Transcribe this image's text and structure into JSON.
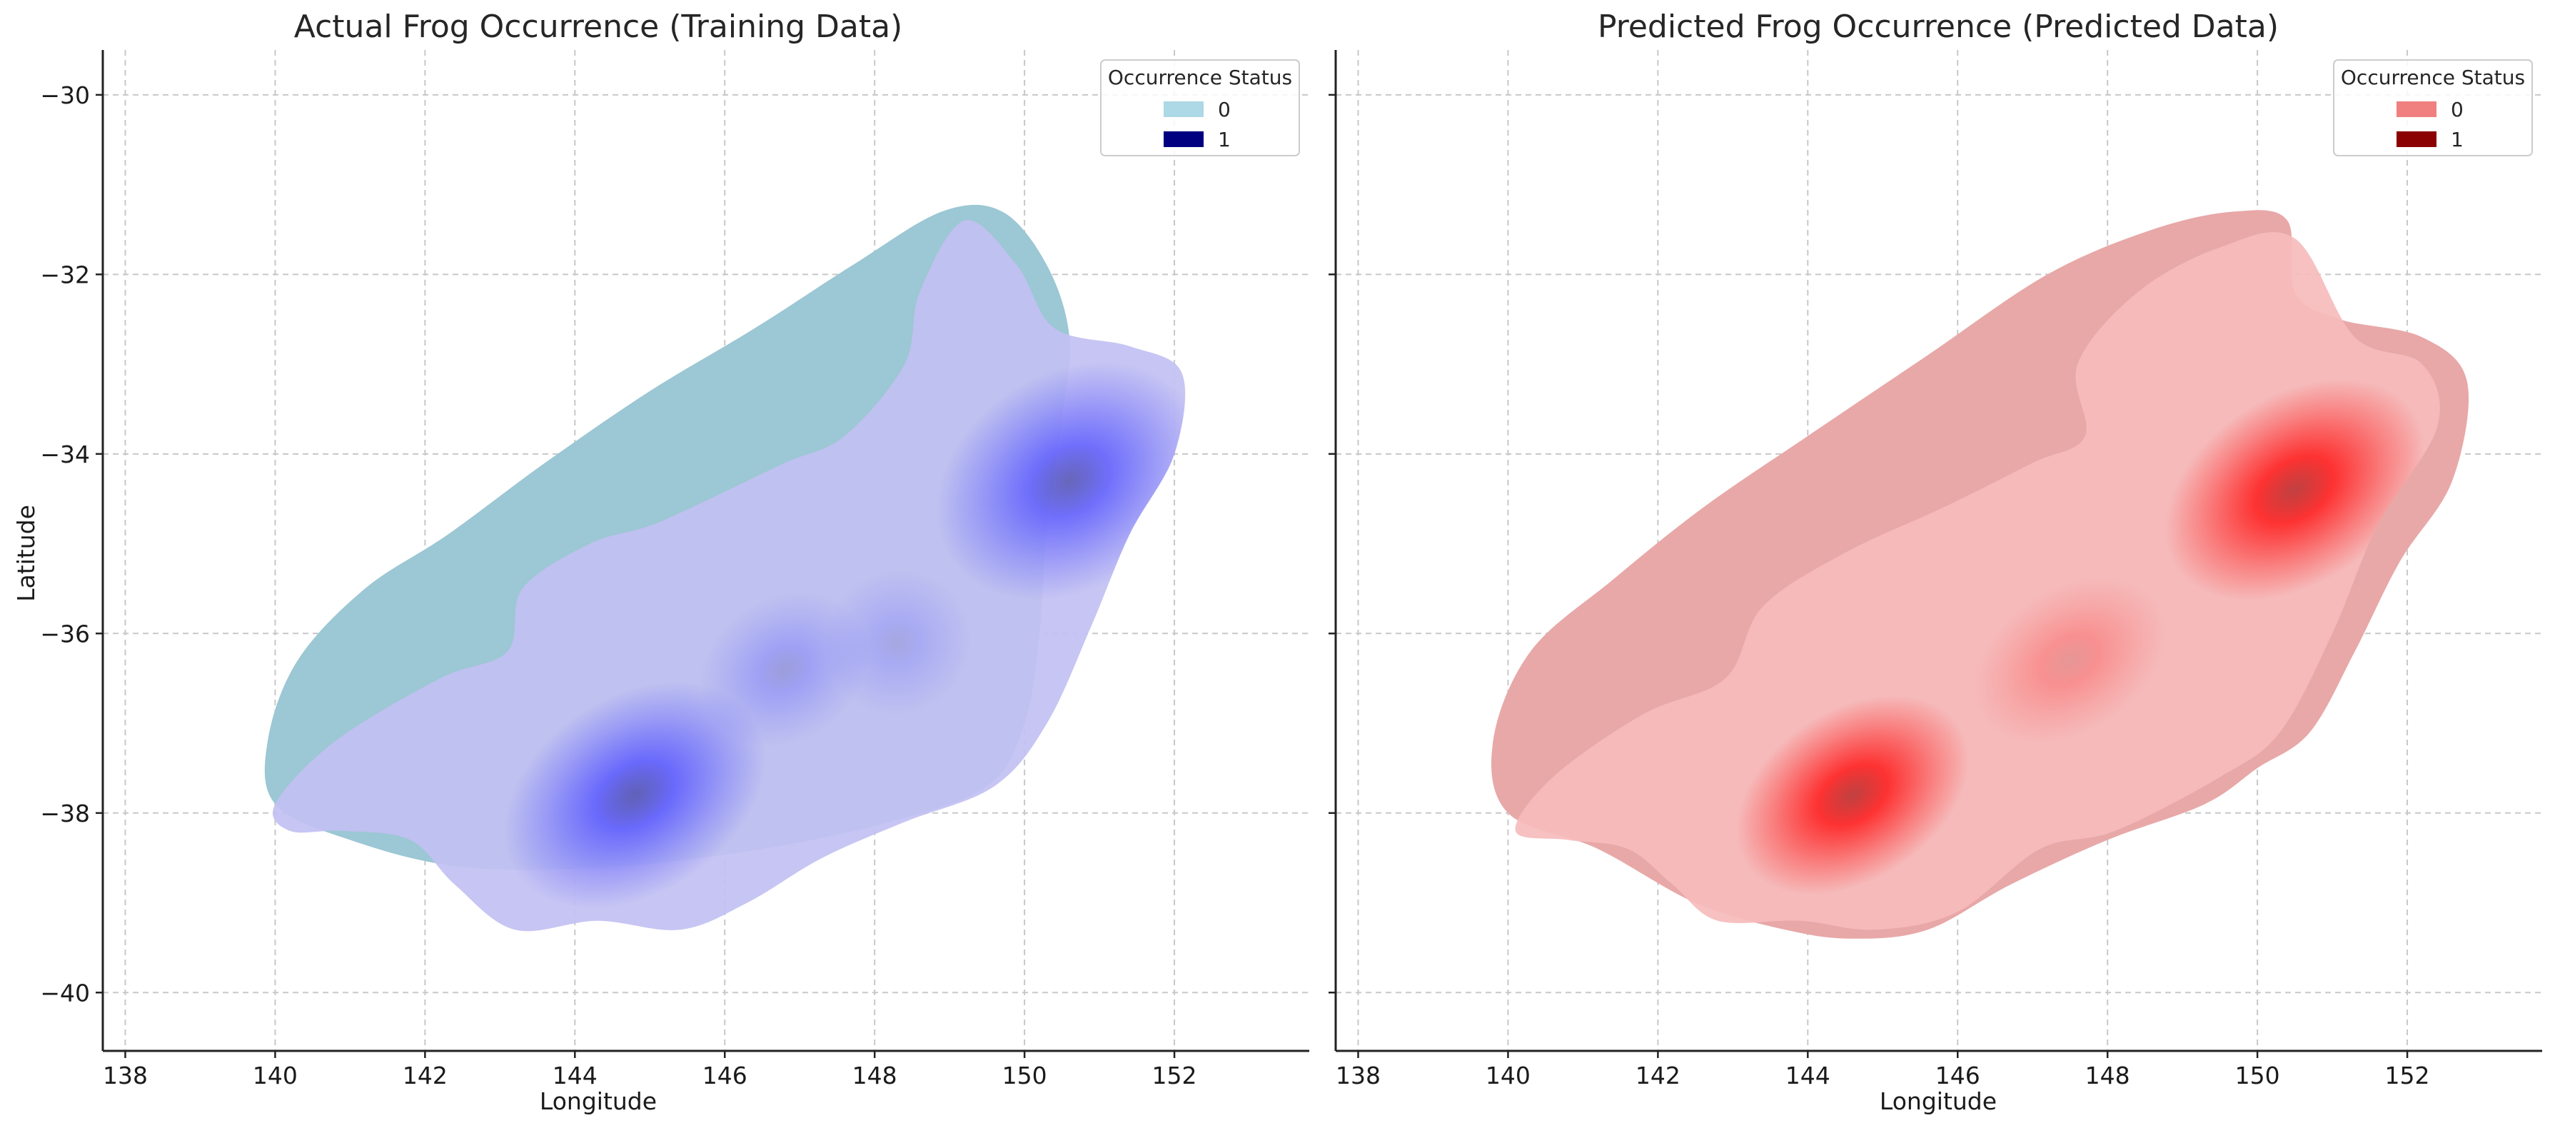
{
  "chart_data": [
    {
      "type": "kde-density",
      "title": "Actual Frog Occurrence (Training Data)",
      "xlabel": "Longitude",
      "ylabel": "Latitude",
      "xlim": [
        137.7,
        153.8
      ],
      "ylim": [
        -40.65,
        -29.5
      ],
      "xticks": [
        138,
        140,
        142,
        144,
        146,
        148,
        150,
        152
      ],
      "yticks": [
        -30,
        -32,
        -34,
        -36,
        -38,
        -40
      ],
      "xtick_labels": [
        "138",
        "140",
        "142",
        "144",
        "146",
        "148",
        "150",
        "152"
      ],
      "ytick_labels": [
        "−30",
        "−32",
        "−34",
        "−36",
        "−38",
        "−40"
      ],
      "grid": true,
      "legend": {
        "title": "Occurrence Status",
        "placement": "top-right",
        "entries": [
          {
            "label": "0",
            "color": "#add8e6"
          },
          {
            "label": "1",
            "color": "#000080"
          }
        ]
      },
      "density_colors": {
        "0": "#9cc7d4",
        "1": "#5555ff",
        "1_low": "#c2c0f2"
      },
      "series": [
        {
          "legend_label": "0",
          "outline": [
            [
              140.0,
              -37.9
            ],
            [
              139.9,
              -37.2
            ],
            [
              140.3,
              -36.3
            ],
            [
              141.2,
              -35.5
            ],
            [
              142.3,
              -34.9
            ],
            [
              143.6,
              -34.1
            ],
            [
              145.0,
              -33.3
            ],
            [
              146.4,
              -32.6
            ],
            [
              147.7,
              -31.9
            ],
            [
              148.9,
              -31.3
            ],
            [
              149.7,
              -31.3
            ],
            [
              150.3,
              -31.9
            ],
            [
              150.6,
              -32.7
            ],
            [
              150.5,
              -33.6
            ],
            [
              150.3,
              -34.8
            ],
            [
              150.2,
              -36.0
            ],
            [
              150.0,
              -37.0
            ],
            [
              149.5,
              -37.7
            ],
            [
              148.2,
              -38.1
            ],
            [
              146.5,
              -38.4
            ],
            [
              144.5,
              -38.6
            ],
            [
              142.5,
              -38.6
            ],
            [
              141.0,
              -38.3
            ]
          ]
        },
        {
          "legend_label": "1",
          "outline": [
            [
              140.2,
              -38.2
            ],
            [
              140.0,
              -37.9
            ],
            [
              140.8,
              -37.2
            ],
            [
              142.2,
              -36.5
            ],
            [
              143.1,
              -36.2
            ],
            [
              143.3,
              -35.5
            ],
            [
              144.2,
              -35.0
            ],
            [
              145.0,
              -34.8
            ],
            [
              145.8,
              -34.5
            ],
            [
              146.8,
              -34.1
            ],
            [
              147.6,
              -33.8
            ],
            [
              148.4,
              -33.0
            ],
            [
              148.6,
              -32.2
            ],
            [
              149.2,
              -31.4
            ],
            [
              149.9,
              -31.9
            ],
            [
              150.4,
              -32.6
            ],
            [
              151.4,
              -32.8
            ],
            [
              152.1,
              -33.1
            ],
            [
              152.0,
              -34.0
            ],
            [
              151.4,
              -34.9
            ],
            [
              150.9,
              -35.9
            ],
            [
              150.3,
              -37.0
            ],
            [
              149.6,
              -37.7
            ],
            [
              148.4,
              -38.1
            ],
            [
              147.3,
              -38.5
            ],
            [
              146.3,
              -39.0
            ],
            [
              145.4,
              -39.3
            ],
            [
              144.3,
              -39.2
            ],
            [
              143.2,
              -39.3
            ],
            [
              142.4,
              -38.8
            ],
            [
              141.8,
              -38.3
            ],
            [
              140.9,
              -38.2
            ]
          ],
          "hotspots": [
            {
              "lon": 144.8,
              "lat": -37.8,
              "spread_lon": 1.9,
              "spread_lat": 1.1,
              "intensity": 0.95
            },
            {
              "lon": 150.6,
              "lat": -34.3,
              "spread_lon": 1.9,
              "spread_lat": 1.2,
              "intensity": 0.9
            },
            {
              "lon": 146.8,
              "lat": -36.4,
              "spread_lon": 1.2,
              "spread_lat": 0.8,
              "intensity": 0.35
            },
            {
              "lon": 148.3,
              "lat": -36.1,
              "spread_lon": 1.0,
              "spread_lat": 0.8,
              "intensity": 0.25
            }
          ]
        }
      ]
    },
    {
      "type": "kde-density",
      "title": "Predicted Frog Occurrence (Predicted Data)",
      "xlabel": "Longitude",
      "ylabel": "",
      "xlim": [
        137.7,
        153.8
      ],
      "ylim": [
        -40.65,
        -29.5
      ],
      "xticks": [
        138,
        140,
        142,
        144,
        146,
        148,
        150,
        152
      ],
      "yticks": [
        -30,
        -32,
        -34,
        -36,
        -38,
        -40
      ],
      "xtick_labels": [
        "138",
        "140",
        "142",
        "144",
        "146",
        "148",
        "150",
        "152"
      ],
      "ytick_labels": [],
      "grid": true,
      "legend": {
        "title": "Occurrence Status",
        "placement": "top-right",
        "entries": [
          {
            "label": "0",
            "color": "#f08080"
          },
          {
            "label": "1",
            "color": "#8b0000"
          }
        ]
      },
      "density_colors": {
        "0": "#e8a8a8",
        "1": "#ff1a1a",
        "1_low": "#f6bcbc"
      },
      "series": [
        {
          "legend_label": "0",
          "outline": [
            [
              140.0,
              -38.0
            ],
            [
              139.8,
              -37.2
            ],
            [
              140.3,
              -36.2
            ],
            [
              141.4,
              -35.4
            ],
            [
              142.6,
              -34.6
            ],
            [
              144.0,
              -33.8
            ],
            [
              145.6,
              -32.9
            ],
            [
              147.2,
              -32.0
            ],
            [
              148.6,
              -31.5
            ],
            [
              149.7,
              -31.3
            ],
            [
              150.4,
              -31.4
            ],
            [
              150.5,
              -32.2
            ],
            [
              151.1,
              -32.5
            ],
            [
              152.2,
              -32.7
            ],
            [
              152.8,
              -33.2
            ],
            [
              152.6,
              -34.3
            ],
            [
              151.9,
              -35.2
            ],
            [
              151.3,
              -36.2
            ],
            [
              150.7,
              -37.1
            ],
            [
              150.0,
              -37.5
            ],
            [
              149.3,
              -37.9
            ],
            [
              148.0,
              -38.3
            ],
            [
              146.7,
              -38.8
            ],
            [
              145.6,
              -39.3
            ],
            [
              144.6,
              -39.4
            ],
            [
              143.7,
              -39.3
            ],
            [
              142.5,
              -39.0
            ],
            [
              141.2,
              -38.4
            ]
          ],
          "hotspots": []
        },
        {
          "legend_label": "1",
          "outline": [
            [
              140.1,
              -38.2
            ],
            [
              140.6,
              -37.6
            ],
            [
              141.8,
              -36.9
            ],
            [
              142.9,
              -36.5
            ],
            [
              143.4,
              -35.7
            ],
            [
              144.5,
              -35.1
            ],
            [
              145.8,
              -34.6
            ],
            [
              147.0,
              -34.1
            ],
            [
              147.7,
              -33.8
            ],
            [
              147.6,
              -33.0
            ],
            [
              148.4,
              -32.2
            ],
            [
              149.5,
              -31.7
            ],
            [
              150.5,
              -31.6
            ],
            [
              151.3,
              -32.7
            ],
            [
              152.2,
              -33.0
            ],
            [
              152.4,
              -33.7
            ],
            [
              151.6,
              -34.8
            ],
            [
              151.0,
              -36.0
            ],
            [
              150.3,
              -37.1
            ],
            [
              149.5,
              -37.6
            ],
            [
              148.1,
              -38.2
            ],
            [
              147.1,
              -38.4
            ],
            [
              146.0,
              -39.1
            ],
            [
              144.9,
              -39.3
            ],
            [
              143.9,
              -39.2
            ],
            [
              142.8,
              -39.2
            ],
            [
              142.2,
              -38.8
            ],
            [
              141.6,
              -38.4
            ],
            [
              140.8,
              -38.3
            ]
          ],
          "hotspots": [
            {
              "lon": 144.6,
              "lat": -37.8,
              "spread_lon": 1.7,
              "spread_lat": 0.95,
              "intensity": 1.0
            },
            {
              "lon": 150.5,
              "lat": -34.4,
              "spread_lon": 1.9,
              "spread_lat": 1.05,
              "intensity": 1.0
            },
            {
              "lon": 147.5,
              "lat": -36.3,
              "spread_lon": 1.4,
              "spread_lat": 0.8,
              "intensity": 0.3
            }
          ]
        }
      ]
    }
  ]
}
